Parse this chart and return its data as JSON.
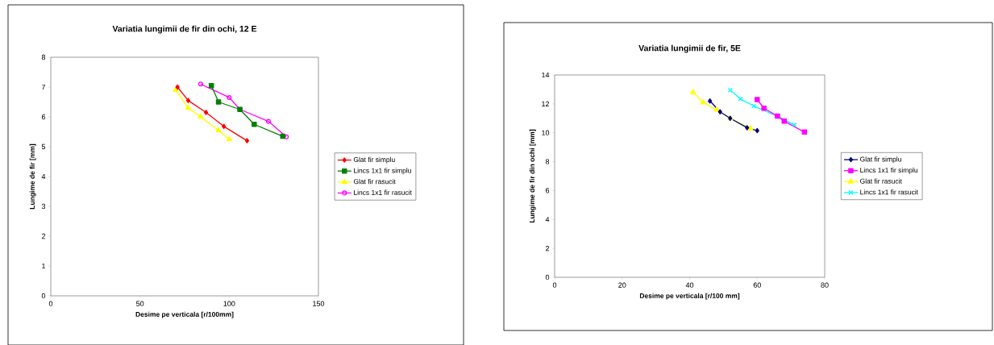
{
  "chart_data": [
    {
      "type": "line",
      "title": "Variatia lungimii de fir din ochi, 12 E",
      "xlabel": "Desime pe verticala [r/100mm]",
      "ylabel": "Lungime de fir [mm]",
      "xlim": [
        0,
        150
      ],
      "xticks": [
        0,
        50,
        100,
        150
      ],
      "ylim": [
        0,
        8
      ],
      "yticks": [
        0,
        1,
        2,
        3,
        4,
        5,
        6,
        7,
        8
      ],
      "legend": "right",
      "grid": false,
      "series": [
        {
          "name": "Glat fir simplu",
          "color": "#ff0000",
          "marker": "diamond",
          "x": [
            71,
            77,
            87,
            97,
            110
          ],
          "values": [
            7.0,
            6.55,
            6.15,
            5.68,
            5.2
          ]
        },
        {
          "name": "Lincs 1x1 fir simplu",
          "color": "#008000",
          "marker": "square",
          "x": [
            90,
            94,
            106,
            114,
            130
          ],
          "values": [
            7.05,
            6.5,
            6.25,
            5.75,
            5.35
          ]
        },
        {
          "name": "Glat fir rasucit",
          "color": "#ffff00",
          "marker": "triangle",
          "x": [
            70,
            77,
            84,
            94,
            100
          ],
          "values": [
            6.9,
            6.3,
            6.0,
            5.55,
            5.25
          ]
        },
        {
          "name": "Lincs 1x1 fir rasucit",
          "color": "#ff00ff",
          "marker": "circle",
          "x": [
            84,
            100,
            106,
            122,
            132
          ],
          "values": [
            7.1,
            6.65,
            6.25,
            5.85,
            5.33
          ]
        }
      ]
    },
    {
      "type": "line",
      "title": "Variatia lungimii de fir, 5E",
      "xlabel": "Desime pe verticala [r/100 mm]",
      "ylabel": "Lungime de fir din ochi [mm]",
      "xlim": [
        0,
        80
      ],
      "xticks": [
        0,
        20,
        40,
        60,
        80
      ],
      "ylim": [
        0,
        14
      ],
      "yticks": [
        0,
        2,
        4,
        6,
        8,
        10,
        12,
        14
      ],
      "legend": "right",
      "grid": false,
      "series": [
        {
          "name": "Glat fir simplu",
          "color": "#000080",
          "marker": "diamond",
          "x": [
            46,
            49,
            52,
            57,
            60
          ],
          "values": [
            12.2,
            11.45,
            11.0,
            10.35,
            10.15
          ]
        },
        {
          "name": "Lincs 1x1 fir simplu",
          "color": "#ff00ff",
          "marker": "square",
          "x": [
            60,
            62,
            66,
            68,
            74
          ],
          "values": [
            12.3,
            11.7,
            11.15,
            10.8,
            10.05
          ]
        },
        {
          "name": "Glat fir rasucit",
          "color": "#ffff00",
          "marker": "triangle",
          "x": [
            41,
            44,
            48,
            52,
            58
          ],
          "values": [
            12.8,
            12.1,
            11.6,
            11.0,
            10.3
          ]
        },
        {
          "name": "Lincs 1x1 fir rasucit",
          "color": "#00ffff",
          "marker": "cross",
          "x": [
            52,
            55,
            59,
            66,
            71
          ],
          "values": [
            12.95,
            12.35,
            11.85,
            11.15,
            10.55
          ]
        }
      ]
    }
  ]
}
